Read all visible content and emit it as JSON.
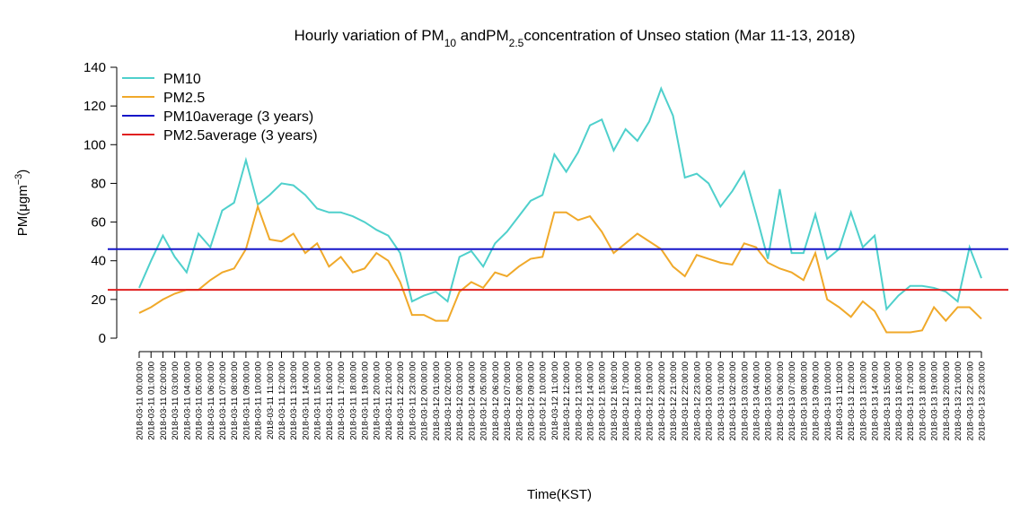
{
  "chart_data": {
    "type": "line",
    "title": [
      "Hourly variation of PM",
      "10",
      " andPM",
      "2.5",
      "concentration of Unseo station (Mar 11-13, 2018)"
    ],
    "ylabel": [
      "PM(μgm",
      "−3",
      ")"
    ],
    "xlabel": "Time(KST)",
    "categories": [
      "2018-03-11 00:00:00",
      "2018-03-11 01:00:00",
      "2018-03-11 02:00:00",
      "2018-03-11 03:00:00",
      "2018-03-11 04:00:00",
      "2018-03-11 05:00:00",
      "2018-03-11 06:00:00",
      "2018-03-11 07:00:00",
      "2018-03-11 08:00:00",
      "2018-03-11 09:00:00",
      "2018-03-11 10:00:00",
      "2018-03-11 11:00:00",
      "2018-03-11 12:00:00",
      "2018-03-11 13:00:00",
      "2018-03-11 14:00:00",
      "2018-03-11 15:00:00",
      "2018-03-11 16:00:00",
      "2018-03-11 17:00:00",
      "2018-03-11 18:00:00",
      "2018-03-11 19:00:00",
      "2018-03-11 20:00:00",
      "2018-03-11 21:00:00",
      "2018-03-11 22:00:00",
      "2018-03-11 23:00:00",
      "2018-03-12 00:00:00",
      "2018-03-12 01:00:00",
      "2018-03-12 02:00:00",
      "2018-03-12 03:00:00",
      "2018-03-12 04:00:00",
      "2018-03-12 05:00:00",
      "2018-03-12 06:00:00",
      "2018-03-12 07:00:00",
      "2018-03-12 08:00:00",
      "2018-03-12 09:00:00",
      "2018-03-12 10:00:00",
      "2018-03-12 11:00:00",
      "2018-03-12 12:00:00",
      "2018-03-12 13:00:00",
      "2018-03-12 14:00:00",
      "2018-03-12 15:00:00",
      "2018-03-12 16:00:00",
      "2018-03-12 17:00:00",
      "2018-03-12 18:00:00",
      "2018-03-12 19:00:00",
      "2018-03-12 20:00:00",
      "2018-03-12 21:00:00",
      "2018-03-12 22:00:00",
      "2018-03-12 23:00:00",
      "2018-03-13 00:00:00",
      "2018-03-13 01:00:00",
      "2018-03-13 02:00:00",
      "2018-03-13 03:00:00",
      "2018-03-13 04:00:00",
      "2018-03-13 05:00:00",
      "2018-03-13 06:00:00",
      "2018-03-13 07:00:00",
      "2018-03-13 08:00:00",
      "2018-03-13 09:00:00",
      "2018-03-13 10:00:00",
      "2018-03-13 11:00:00",
      "2018-03-13 12:00:00",
      "2018-03-13 13:00:00",
      "2018-03-13 14:00:00",
      "2018-03-13 15:00:00",
      "2018-03-13 16:00:00",
      "2018-03-13 17:00:00",
      "2018-03-13 18:00:00",
      "2018-03-13 19:00:00",
      "2018-03-13 20:00:00",
      "2018-03-13 21:00:00",
      "2018-03-13 22:00:00",
      "2018-03-13 23:00:00"
    ],
    "series": [
      {
        "name": "PM10",
        "color": "#4fd0cc",
        "values": [
          26,
          40,
          53,
          42,
          34,
          54,
          47,
          66,
          70,
          92,
          69,
          74,
          80,
          79,
          74,
          67,
          65,
          65,
          63,
          60,
          56,
          53,
          44,
          19,
          22,
          24,
          19,
          42,
          45,
          37,
          49,
          55,
          63,
          71,
          74,
          95,
          86,
          96,
          110,
          113,
          97,
          108,
          102,
          112,
          129,
          115,
          83,
          85,
          80,
          68,
          76,
          86,
          64,
          41,
          77,
          44,
          44,
          64,
          41,
          46,
          65,
          47,
          53,
          15,
          22,
          27,
          27,
          26,
          24,
          19,
          47,
          31
        ]
      },
      {
        "name": "PM2.5",
        "color": "#f0a92a",
        "values": [
          13,
          16,
          20,
          23,
          25,
          25,
          30,
          34,
          36,
          46,
          68,
          51,
          50,
          54,
          44,
          49,
          37,
          42,
          34,
          36,
          44,
          40,
          29,
          12,
          12,
          9,
          9,
          24,
          29,
          26,
          34,
          32,
          37,
          41,
          42,
          65,
          65,
          61,
          63,
          55,
          44,
          49,
          54,
          50,
          46,
          37,
          32,
          43,
          41,
          39,
          38,
          49,
          47,
          39,
          36,
          34,
          30,
          44,
          20,
          16,
          11,
          19,
          14,
          3,
          3,
          3,
          4,
          16,
          9,
          16,
          16,
          10
        ]
      }
    ],
    "reference_lines": [
      {
        "name": "PM10average (3 years)",
        "color": "#1515c8",
        "value": 46
      },
      {
        "name": "PM2.5average (3 years)",
        "color": "#e02020",
        "value": 25
      }
    ],
    "ylim": [
      0,
      140
    ],
    "yticks": [
      0,
      20,
      40,
      60,
      80,
      100,
      120,
      140
    ]
  }
}
